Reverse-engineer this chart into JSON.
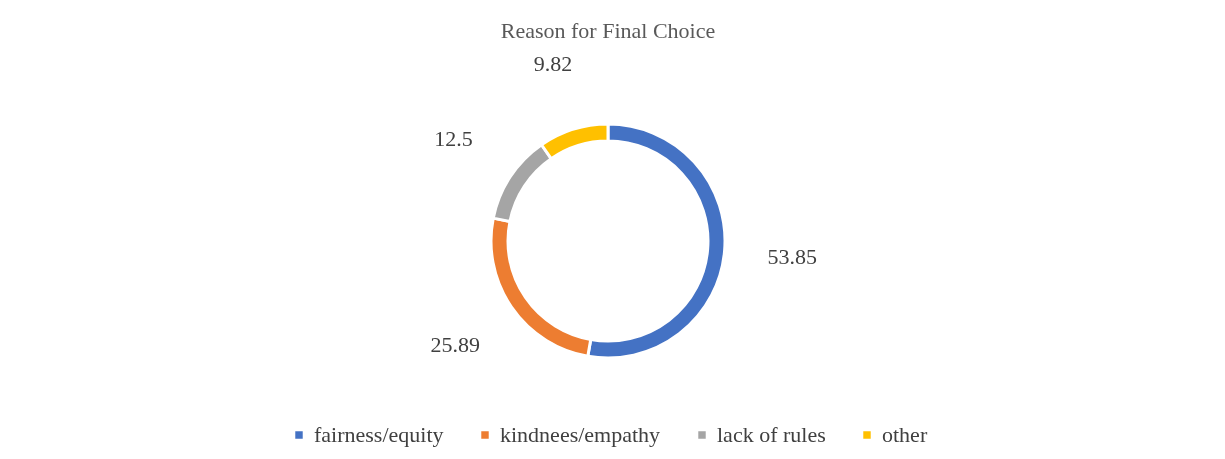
{
  "chart_data": {
    "type": "donut",
    "title": "Reason for Final Choice",
    "categories": [
      "fairness/equity",
      "kindnees/empathy",
      "lack of rules",
      "other"
    ],
    "values": [
      53.85,
      25.89,
      12.5,
      9.82
    ],
    "colors": [
      "#4472c4",
      "#ed7d31",
      "#a5a5a5",
      "#ffc000"
    ],
    "data_labels": true,
    "legend": "bottom"
  }
}
